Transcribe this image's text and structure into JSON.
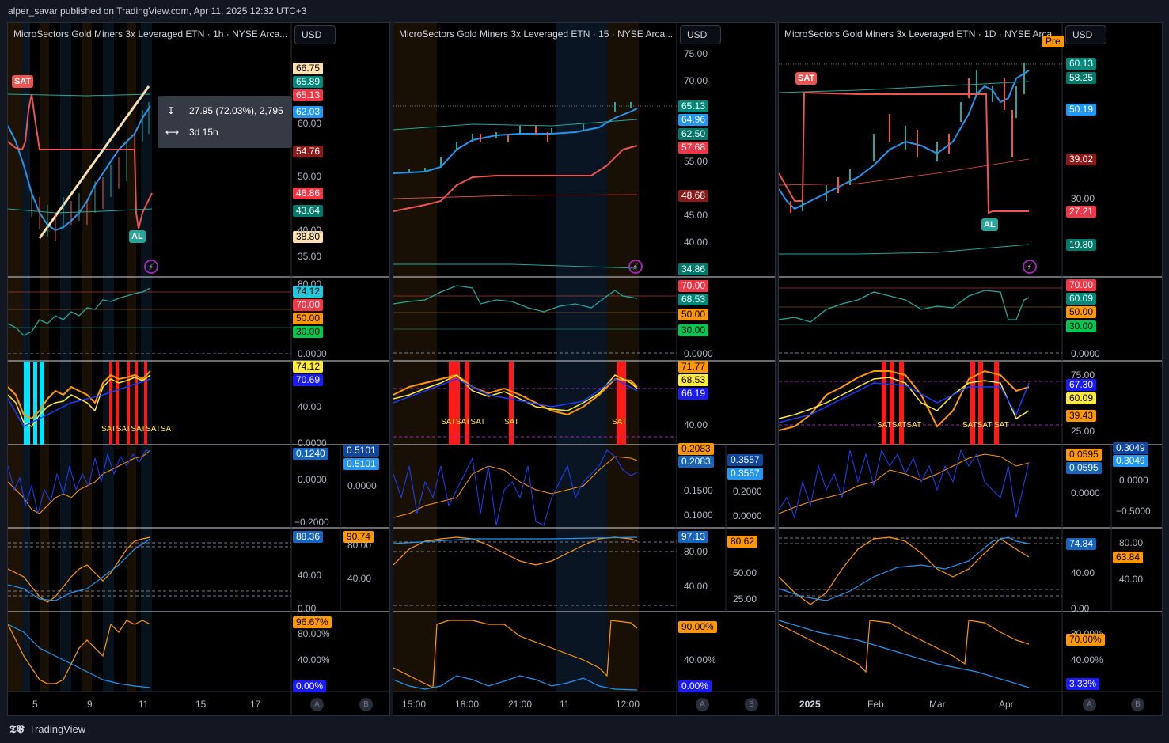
{
  "header": {
    "text": "alper_savar published on TradingView.com, Apr 11, 2025 12:32 UTC+3"
  },
  "footer": {
    "brand": "TradingView"
  },
  "colors": {
    "bg": "#131722",
    "up": "#26a69a",
    "down": "#ef5350",
    "blue": "#2196f3",
    "orange": "#ff9800",
    "yellow": "#ffeb3b",
    "cyan": "#00bcd4"
  },
  "panels": [
    {
      "title": "MicroSectors Gold Miners 3x Leveraged ETN · 1h · NYSE Arca...",
      "currency": "USD",
      "tooltip": {
        "line1": "27.95 (72.03%), 2,795",
        "line2": "3d 15h"
      },
      "signal_sell": "SAT",
      "signal_buy": "AL",
      "main_badges": [
        "66.75",
        "65.89",
        "65.13",
        "62.03",
        "54.76",
        "46.86",
        "43.64",
        "38.80"
      ],
      "main_ticks": [
        "60.00",
        "50.00",
        "40.00",
        "35.00"
      ],
      "rsi_badges": [
        "74.12",
        "70.00",
        "50.00",
        "30.00"
      ],
      "rsi_ticks": [
        "80.00",
        "0.0000"
      ],
      "ind3_badges": [
        "74.12",
        "70.69"
      ],
      "ind3_ticks": [
        "40.00",
        "0.0000"
      ],
      "ind3_labels": "SATSATSATSATSAT",
      "ind4_badges": [
        "0.1240"
      ],
      "ind4_ticks": [
        "0.0000",
        "−0.2000"
      ],
      "ind4_b_badges": [
        "0.5101",
        "0.5101"
      ],
      "ind4_b_ticks": [
        "0.0000"
      ],
      "ind5_badges": [
        "88.36"
      ],
      "ind5_ticks": [
        "40.00",
        "0.00"
      ],
      "ind5_b_badges": [
        "90.74"
      ],
      "ind5_b_ticks": [
        "80.00",
        "40.00"
      ],
      "ind6_badges": [
        "96.67%",
        "0.00%"
      ],
      "ind6_ticks": [
        "80.00%",
        "40.00%"
      ],
      "xticks": [
        "5",
        "9",
        "11",
        "15",
        "17"
      ],
      "scale_a": "A",
      "scale_b": "B"
    },
    {
      "title": "MicroSectors Gold Miners 3x Leveraged ETN · 15 · NYSE Arca...",
      "currency": "USD",
      "main_badges": [
        "65.13",
        "64.96",
        "62.50",
        "57.68",
        "48.68",
        "34.86"
      ],
      "main_ticks": [
        "75.00",
        "70.00",
        "55.00",
        "45.00",
        "40.00"
      ],
      "rsi_badges": [
        "70.00",
        "68.53",
        "50.00",
        "30.00"
      ],
      "rsi_ticks": [
        "0.0000"
      ],
      "ind3_badges": [
        "71.77",
        "68.53",
        "66.19"
      ],
      "ind3_ticks": [
        "40.00"
      ],
      "ind3_labels": [
        "SATSATSAT",
        "SAT",
        "SAT"
      ],
      "ind4_badges": [
        "0.2083",
        "0.2083"
      ],
      "ind4_ticks": [
        "0.1500",
        "0.1000"
      ],
      "ind4_b_badges": [
        "0.3557",
        "0.3557"
      ],
      "ind4_b_ticks": [
        "0.2000",
        "0.0000"
      ],
      "ind5_badges": [
        "97.13"
      ],
      "ind5_ticks": [
        "80.00",
        "40.00"
      ],
      "ind5_b_badges": [
        "80.62"
      ],
      "ind5_b_ticks": [
        "50.00",
        "25.00"
      ],
      "ind6_badges": [
        "90.00%",
        "0.00%"
      ],
      "ind6_ticks": [
        "40.00%"
      ],
      "xticks": [
        "15:00",
        "18:00",
        "21:00",
        "11",
        "12:00"
      ],
      "scale_a": "A",
      "scale_b": "B"
    },
    {
      "title": "MicroSectors Gold Miners 3x Leveraged ETN · 1D · NYSE Arca",
      "currency": "USD",
      "pre": "Pre",
      "signal_sell": "SAT",
      "signal_buy": "AL",
      "main_badges": [
        "60.13",
        "58.25",
        "50.19",
        "39.02",
        "27.21",
        "19.80"
      ],
      "main_ticks": [
        "30.00"
      ],
      "rsi_badges": [
        "70.00",
        "60.09",
        "50.00",
        "30.00"
      ],
      "rsi_ticks": [
        "0.0000"
      ],
      "ind3_badges": [
        "67.30",
        "60.09",
        "39.43"
      ],
      "ind3_ticks": [
        "75.00",
        "25.00"
      ],
      "ind3_labels": [
        "SATSATSAT",
        "SATSAT SAT"
      ],
      "ind4_badges": [
        "0.0595",
        "0.0595"
      ],
      "ind4_ticks": [
        "0.0000"
      ],
      "ind4_b_badges": [
        "0.3049",
        "0.3049"
      ],
      "ind4_b_ticks": [
        "0.0000",
        "−0.5000"
      ],
      "ind5_badges": [
        "74.84"
      ],
      "ind5_ticks": [
        "40.00",
        "0.00"
      ],
      "ind5_b_badges": [
        "63.84"
      ],
      "ind5_b_ticks": [
        "80.00",
        "40.00"
      ],
      "ind6_badges": [
        "70.00%",
        "3.33%"
      ],
      "ind6_ticks": [
        "80.00%",
        "40.00%"
      ],
      "xticks": [
        "2025",
        "Feb",
        "Mar",
        "Apr"
      ],
      "scale_a": "A",
      "scale_b": "B"
    }
  ]
}
